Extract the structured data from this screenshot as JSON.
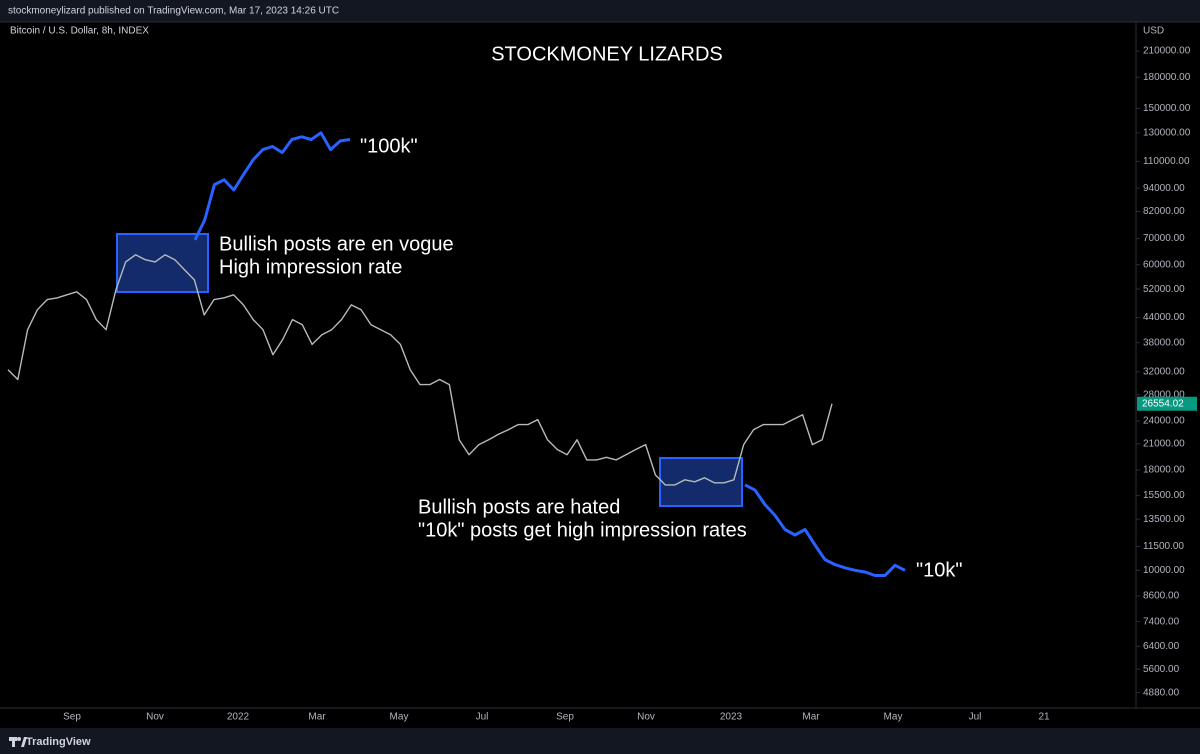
{
  "header": {
    "publisher": "stockmoneylizard published on TradingView.com, Mar 17, 2023 14:26 UTC"
  },
  "footer": {
    "brand": "TradingView"
  },
  "chart_data": {
    "type": "line",
    "title": "STOCKMONEY LIZARDS",
    "symbol": "Bitcoin / U.S. Dollar, 8h, INDEX",
    "currency": "USD",
    "log_scale": true,
    "grid": false,
    "ylim": [
      4460,
      249000
    ],
    "yticks": [
      {
        "value": 210000,
        "label": "210000.00"
      },
      {
        "value": 180000,
        "label": "180000.00"
      },
      {
        "value": 150000,
        "label": "150000.00"
      },
      {
        "value": 130000,
        "label": "130000.00"
      },
      {
        "value": 110000,
        "label": "110000.00"
      },
      {
        "value": 94000,
        "label": "94000.00"
      },
      {
        "value": 82000,
        "label": "82000.00"
      },
      {
        "value": 70000,
        "label": "70000.00"
      },
      {
        "value": 60000,
        "label": "60000.00"
      },
      {
        "value": 52000,
        "label": "52000.00"
      },
      {
        "value": 44000,
        "label": "44000.00"
      },
      {
        "value": 38000,
        "label": "38000.00"
      },
      {
        "value": 32000,
        "label": "32000.00"
      },
      {
        "value": 28000,
        "label": "28000.00"
      },
      {
        "value": 24000,
        "label": "24000.00"
      },
      {
        "value": 21000,
        "label": "21000.00"
      },
      {
        "value": 18000,
        "label": "18000.00"
      },
      {
        "value": 15500,
        "label": "15500.00"
      },
      {
        "value": 13500,
        "label": "13500.00"
      },
      {
        "value": 11500,
        "label": "11500.00"
      },
      {
        "value": 10000,
        "label": "10000.00"
      },
      {
        "value": 8600,
        "label": "8600.00"
      },
      {
        "value": 7400,
        "label": "7400.00"
      },
      {
        "value": 6400,
        "label": "6400.00"
      },
      {
        "value": 5600,
        "label": "5600.00"
      },
      {
        "value": 4880,
        "label": "4880.00"
      }
    ],
    "xtick_labels": [
      "Sep",
      "Nov",
      "2022",
      "Mar",
      "May",
      "Jul",
      "Sep",
      "Nov",
      "2023",
      "Mar",
      "May",
      "Jul",
      "21"
    ],
    "last_value": 26554.02,
    "last_value_color": "#089981",
    "series": [
      {
        "name": "Bitcoin",
        "color": "#b4bcb8",
        "values": [
          32400,
          30600,
          41000,
          46100,
          48900,
          49400,
          50300,
          51200,
          48900,
          43500,
          41000,
          51800,
          61000,
          63600,
          61800,
          61000,
          63600,
          61800,
          58200,
          54900,
          44700,
          48900,
          49400,
          50300,
          47400,
          43500,
          41000,
          35400,
          38700,
          43500,
          42200,
          37600,
          39800,
          41000,
          43500,
          47400,
          46100,
          42200,
          41000,
          39800,
          37600,
          32400,
          29700,
          29700,
          30600,
          29700,
          21500,
          19700,
          20900,
          21500,
          22200,
          22800,
          23500,
          23500,
          24200,
          21500,
          20300,
          19700,
          21500,
          19100,
          19100,
          19400,
          19100,
          19700,
          20300,
          20900,
          17500,
          16500,
          16500,
          17000,
          16800,
          17200,
          16700,
          16700,
          17000,
          20900,
          22800,
          23500,
          23500,
          23500,
          24200,
          24900,
          20900,
          21500,
          26554.02
        ]
      },
      {
        "name": "\"100k\"",
        "color": "#2962ff",
        "values": [
          69400,
          78000,
          96000,
          98700,
          93000,
          101700,
          110900,
          117800,
          120000,
          115800,
          125000,
          127000,
          125000,
          130000,
          117800,
          124000,
          125000
        ]
      },
      {
        "name": "\"10k\"",
        "color": "#2962ff",
        "values": [
          16500,
          16000,
          14700,
          13800,
          12700,
          12300,
          12700,
          11600,
          10650,
          10340,
          10150,
          10000,
          9900,
          9700,
          9700,
          10300,
          10000
        ]
      }
    ],
    "annotations": [
      {
        "lines": [
          "Bullish posts are en vogue",
          "High impression rate"
        ]
      },
      {
        "lines": [
          "Bullish posts are hated",
          "\"10k\" posts get high impression rates"
        ]
      }
    ]
  }
}
